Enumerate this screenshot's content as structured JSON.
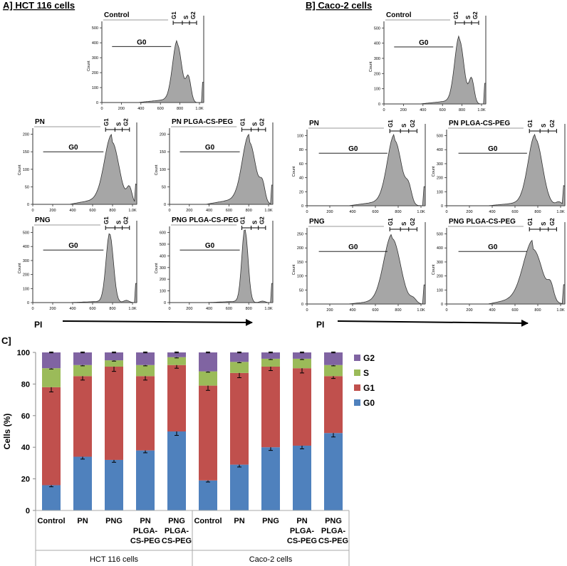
{
  "panel_a_title": "A] HCT 116 cells",
  "panel_b_title": "B] Caco-2 cells",
  "panel_c_title": "C]",
  "pi_label": "PI",
  "histogram_count_label": "Count",
  "region_labels": {
    "g0": "G0",
    "g1": "G1",
    "s": "S",
    "g2": "G2"
  },
  "histograms": [
    {
      "panel": "A",
      "title": "Control",
      "y_ticks": [
        "0",
        "100",
        "200",
        "300",
        "400",
        "500"
      ],
      "x_ticks": [
        "0",
        "200",
        "400",
        "600",
        "800",
        "1.0K"
      ]
    },
    {
      "panel": "A",
      "title": "PN",
      "y_ticks": [
        "0",
        "50",
        "100",
        "150",
        "200"
      ],
      "x_ticks": [
        "0",
        "200",
        "400",
        "600",
        "800",
        "1.0K"
      ]
    },
    {
      "panel": "A",
      "title": "PN PLGA-CS-PEG",
      "y_ticks": [
        "0",
        "50",
        "100",
        "150",
        "200"
      ],
      "x_ticks": [
        "0",
        "200",
        "400",
        "600",
        "800",
        "1.0K"
      ]
    },
    {
      "panel": "A",
      "title": "PNG",
      "y_ticks": [
        "0",
        "100",
        "200",
        "300",
        "400",
        "500"
      ],
      "x_ticks": [
        "0",
        "200",
        "400",
        "600",
        "800",
        "1.0K"
      ]
    },
    {
      "panel": "A",
      "title": "PNG PLGA-CS-PEG",
      "y_ticks": [
        "0",
        "100",
        "200",
        "300",
        "400",
        "500",
        "600"
      ],
      "x_ticks": [
        "0",
        "200",
        "400",
        "600",
        "800",
        "1.0K"
      ]
    },
    {
      "panel": "B",
      "title": "Control",
      "y_ticks": [
        "0",
        "100",
        "200",
        "300",
        "400",
        "500"
      ],
      "x_ticks": [
        "0",
        "200",
        "400",
        "600",
        "800",
        "1.0K"
      ]
    },
    {
      "panel": "B",
      "title": "PN",
      "y_ticks": [
        "0",
        "20",
        "40",
        "60",
        "80",
        "100"
      ],
      "x_ticks": [
        "0",
        "200",
        "400",
        "600",
        "800",
        "1.0K"
      ]
    },
    {
      "panel": "B",
      "title": "PN PLGA-CS-PEG",
      "y_ticks": [
        "0",
        "100",
        "200",
        "300",
        "400",
        "500"
      ],
      "x_ticks": [
        "0",
        "200",
        "400",
        "600",
        "800",
        "1.0K"
      ]
    },
    {
      "panel": "B",
      "title": "PNG",
      "y_ticks": [
        "0",
        "50",
        "100",
        "150",
        "200",
        "250"
      ],
      "x_ticks": [
        "0",
        "200",
        "400",
        "600",
        "800",
        "1.0K"
      ]
    },
    {
      "panel": "B",
      "title": "PNG PLGA-CS-PEG",
      "y_ticks": [
        "0",
        "100",
        "200",
        "300",
        "400",
        "500"
      ],
      "x_ticks": [
        "0",
        "200",
        "400",
        "600",
        "800",
        "1.0K"
      ]
    }
  ],
  "chart_data": {
    "type": "bar",
    "stacked": true,
    "title": "",
    "ylabel": "Cells (%)",
    "xlabel": "",
    "ylim": [
      0,
      100
    ],
    "y_ticks": [
      0,
      20,
      40,
      60,
      80,
      100
    ],
    "categories": [
      "Control",
      "PN",
      "PNG",
      "PN\nPLGA-\nCS-PEG",
      "PNG\nPLGA-\nCS-PEG",
      "Control",
      "PN",
      "PNG",
      "PN\nPLGA-\nCS-PEG",
      "PNG\nPLGA-\nCS-PEG"
    ],
    "groups": [
      {
        "name": "HCT 116 cells",
        "count": 5
      },
      {
        "name": "Caco-2 cells",
        "count": 5
      }
    ],
    "series": [
      {
        "name": "G0",
        "color": "#4f81bd",
        "values": [
          16,
          34,
          32,
          38,
          50,
          19,
          29,
          40,
          41,
          49
        ],
        "errors": [
          1,
          1.5,
          1.5,
          1.5,
          2.5,
          1,
          1.5,
          2,
          2,
          2.5
        ]
      },
      {
        "name": "G1",
        "color": "#c0504d",
        "values": [
          62,
          51,
          59,
          47,
          42,
          60,
          58,
          51,
          49,
          36
        ],
        "errors": [
          3,
          2.5,
          3,
          2.5,
          2,
          3,
          3,
          2.5,
          3,
          1.5
        ]
      },
      {
        "name": "S",
        "color": "#9bbb59",
        "values": [
          12,
          7,
          4,
          7,
          5,
          9,
          7,
          5,
          6,
          7
        ],
        "errors": [
          0.5,
          0.5,
          0.5,
          0.5,
          0.5,
          0.5,
          0.5,
          0.5,
          0.5,
          0.5
        ]
      },
      {
        "name": "G2",
        "color": "#8064a2",
        "values": [
          10,
          8,
          5,
          8,
          3,
          12,
          6,
          4,
          4,
          8
        ],
        "errors": [
          0.3,
          0.3,
          0.3,
          0.3,
          0.3,
          0.3,
          0.3,
          0.3,
          0.3,
          0.3
        ]
      }
    ],
    "legend": [
      "G2",
      "S",
      "G1",
      "G0"
    ],
    "legend_position": "right"
  }
}
